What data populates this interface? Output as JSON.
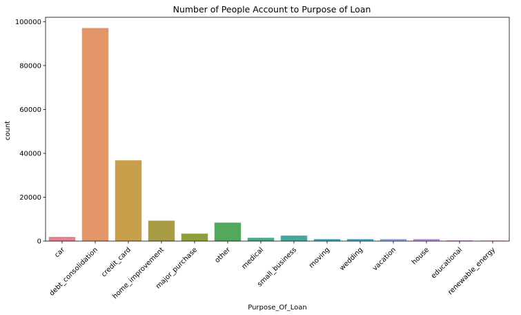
{
  "chart_data": {
    "type": "bar",
    "title": "Number of People Account to Purpose of Loan",
    "xlabel": "Purpose_Of_Loan",
    "ylabel": "count",
    "categories": [
      "car",
      "debt_consolidation",
      "credit_card",
      "home_improvement",
      "major_purchase",
      "other",
      "medical",
      "small_business",
      "moving",
      "wedding",
      "vacation",
      "house",
      "educational",
      "renewable_energy"
    ],
    "values": [
      1900,
      97100,
      36800,
      9300,
      3400,
      8400,
      1500,
      2500,
      900,
      900,
      900,
      900,
      300,
      200
    ],
    "colors": [
      "#e8818e",
      "#e59669",
      "#c8a04b",
      "#a79c44",
      "#8f9f3c",
      "#52a85c",
      "#4aab8b",
      "#45a8a1",
      "#48a6b8",
      "#4ea4cf",
      "#8ba4e8",
      "#bb8fe3",
      "#e07fd1",
      "#e37fae"
    ],
    "ylim": [
      0,
      102000
    ],
    "yticks": [
      0,
      20000,
      40000,
      60000,
      80000,
      100000
    ],
    "grid": false
  }
}
